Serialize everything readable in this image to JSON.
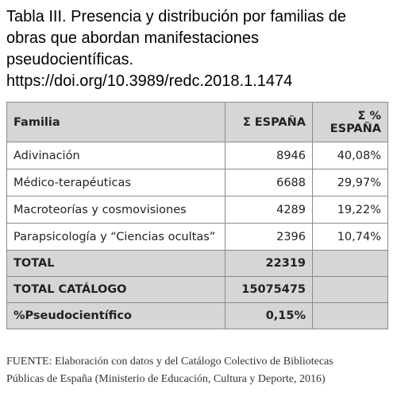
{
  "title_lines": [
    "Tabla III. Presencia y distribución por familias de",
    "obras que abordan manifestaciones",
    "pseudocientíficas.",
    "https://doi.org/10.3989/redc.2018.1.1474"
  ],
  "table": {
    "header": [
      "Familia",
      "Σ ESPAÑA",
      "Σ % ESPAÑA"
    ],
    "rows": [
      [
        "Adivinación",
        "8946",
        "40,08%"
      ],
      [
        "Médico-terapéuticas",
        "6688",
        "29,97%"
      ],
      [
        "Macroteorías y cosmovisiones",
        "4289",
        "19,22%"
      ],
      [
        "Parapsicología y “Ciencias ocultas”",
        "2396",
        "10,74%"
      ]
    ],
    "summary_rows": [
      [
        "TOTAL",
        "22319"
      ],
      [
        "TOTAL CATÁLOGO",
        "15075475"
      ],
      [
        "%Pseudocientífico",
        "0,15%"
      ]
    ]
  },
  "footer_lines": [
    "FUENTE: Elaboración con datos y del Catálogo Colectivo de Bibliotecas",
    "Públicas de España (Ministerio de Educación, Cultura y Deporte, 2016)"
  ]
}
